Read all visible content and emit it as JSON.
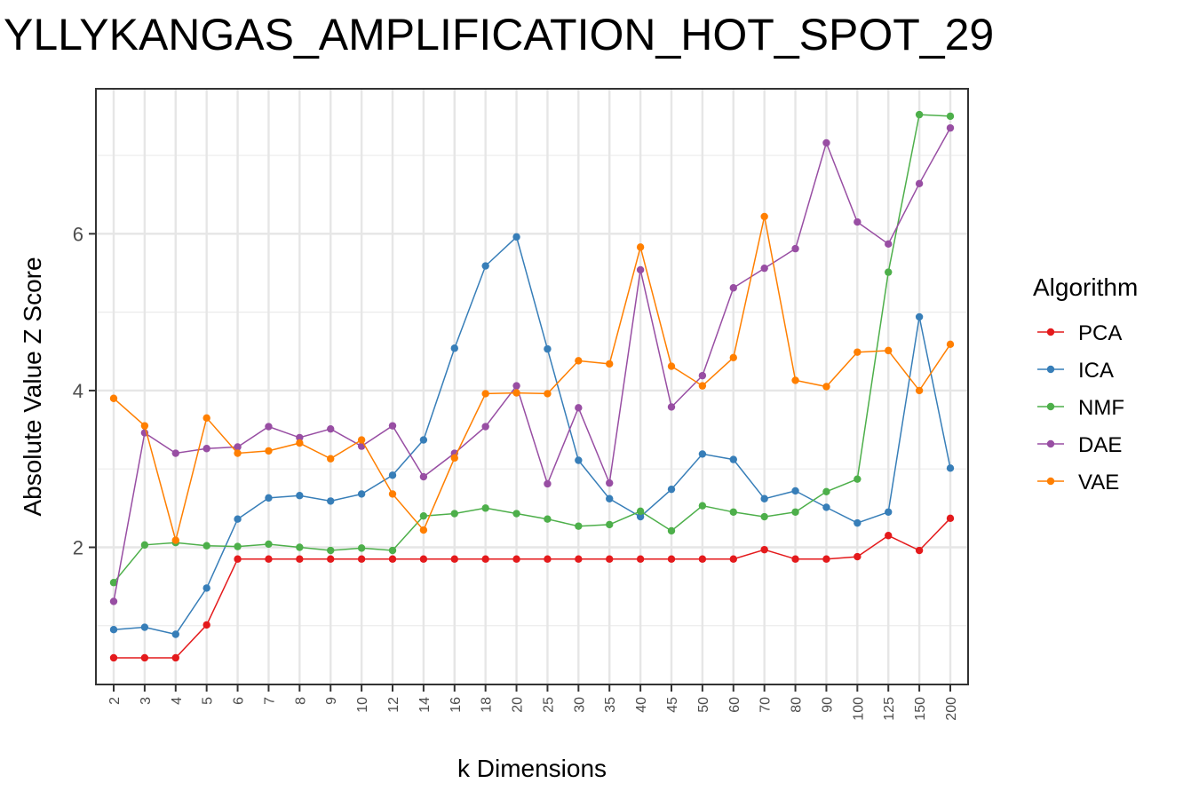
{
  "chart_data": {
    "type": "line",
    "title": "YLLYKANGAS_AMPLIFICATION_HOT_SPOT_29",
    "xlabel": "k Dimensions",
    "ylabel": "Absolute Value Z Score",
    "categories": [
      "2",
      "3",
      "4",
      "5",
      "6",
      "7",
      "8",
      "9",
      "10",
      "12",
      "14",
      "16",
      "18",
      "20",
      "25",
      "30",
      "35",
      "40",
      "45",
      "50",
      "60",
      "70",
      "80",
      "90",
      "100",
      "125",
      "150",
      "200"
    ],
    "y_ticks": [
      2,
      4,
      6
    ],
    "ylim": [
      0.25,
      7.85
    ],
    "grid": true,
    "legend_title": "Algorithm",
    "legend_position": "right",
    "series": [
      {
        "name": "PCA",
        "color": "#e41a1c",
        "values": [
          0.59,
          0.59,
          0.59,
          1.01,
          1.85,
          1.85,
          1.85,
          1.85,
          1.85,
          1.85,
          1.85,
          1.85,
          1.85,
          1.85,
          1.85,
          1.85,
          1.85,
          1.85,
          1.85,
          1.85,
          1.85,
          1.97,
          1.85,
          1.85,
          1.88,
          2.15,
          1.96,
          2.37
        ]
      },
      {
        "name": "ICA",
        "color": "#377eb8",
        "values": [
          0.95,
          0.98,
          0.89,
          1.48,
          2.36,
          2.63,
          2.66,
          2.59,
          2.68,
          2.92,
          3.37,
          4.54,
          5.59,
          5.96,
          4.53,
          3.11,
          2.62,
          2.39,
          2.74,
          3.19,
          3.12,
          2.62,
          2.72,
          2.51,
          2.31,
          2.45,
          4.94,
          3.01
        ]
      },
      {
        "name": "NMF",
        "color": "#4daf4a",
        "values": [
          1.55,
          2.03,
          2.06,
          2.02,
          2.01,
          2.04,
          2.0,
          1.96,
          1.99,
          1.96,
          2.4,
          2.43,
          2.5,
          2.43,
          2.36,
          2.27,
          2.29,
          2.46,
          2.21,
          2.53,
          2.45,
          2.39,
          2.45,
          2.71,
          2.87,
          5.51,
          7.52,
          7.5
        ]
      },
      {
        "name": "DAE",
        "color": "#984ea3",
        "values": [
          1.31,
          3.46,
          3.2,
          3.26,
          3.28,
          3.54,
          3.4,
          3.51,
          3.29,
          3.55,
          2.9,
          3.2,
          3.54,
          4.06,
          2.81,
          3.78,
          2.82,
          5.54,
          3.79,
          4.19,
          5.31,
          5.56,
          5.81,
          7.16,
          6.15,
          5.87,
          6.64,
          7.35
        ]
      },
      {
        "name": "VAE",
        "color": "#ff7f00",
        "values": [
          3.9,
          3.55,
          2.09,
          3.65,
          3.2,
          3.23,
          3.33,
          3.13,
          3.37,
          2.68,
          2.22,
          3.14,
          3.96,
          3.97,
          3.96,
          4.38,
          4.34,
          5.83,
          4.31,
          4.06,
          4.42,
          6.22,
          4.13,
          4.05,
          4.49,
          4.51,
          4.0,
          4.59
        ]
      }
    ]
  }
}
